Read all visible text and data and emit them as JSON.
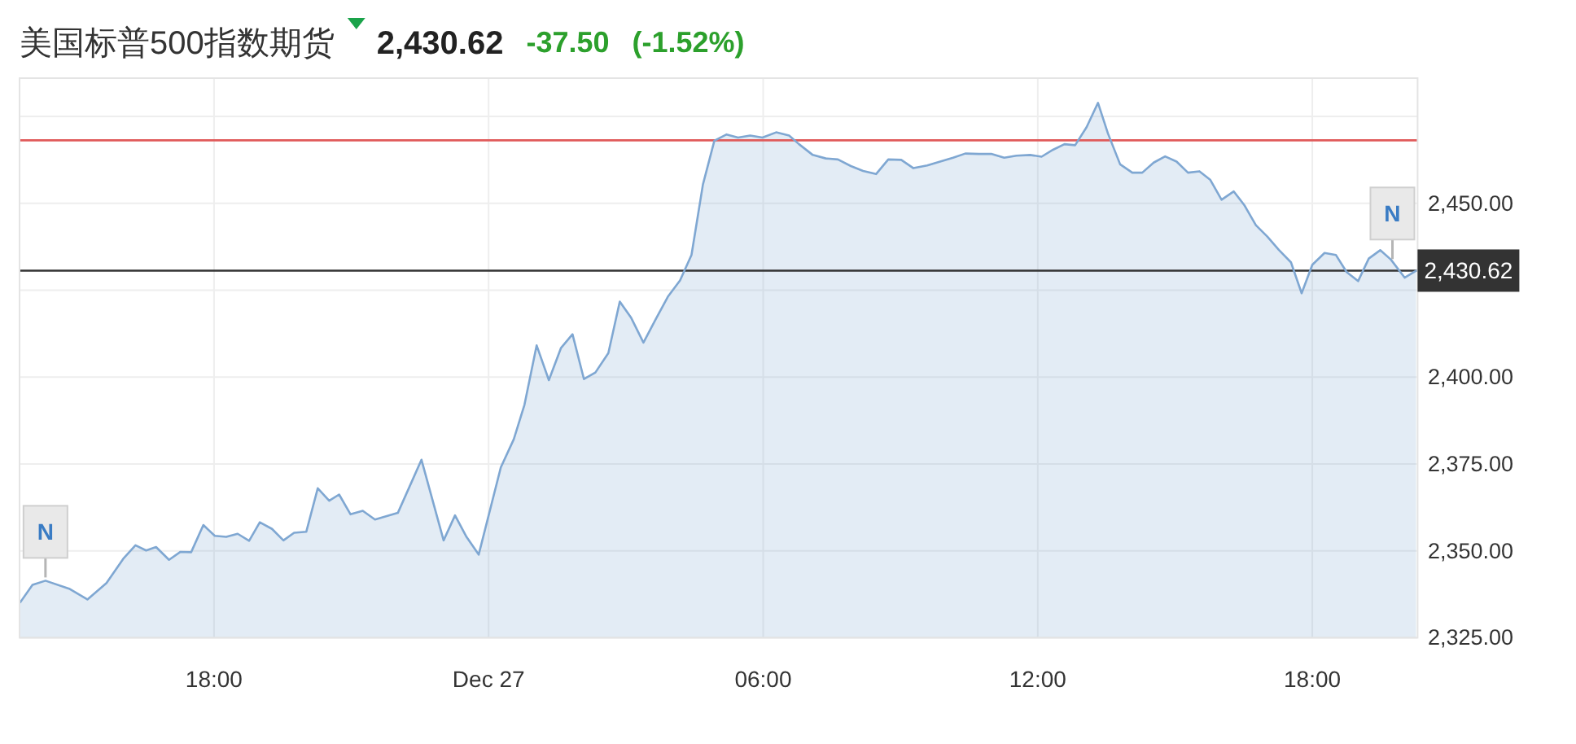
{
  "chart_data": {
    "type": "area",
    "title": "美国标普500指数期货",
    "subtitle": "2,430.62",
    "annotations": [
      "-37.50",
      "(-1.52%)",
      {
        "text": "N",
        "x": "--12-26T14:19",
        "y": 2341.4
      },
      {
        "text": "N",
        "x": "--12-27T19:45",
        "y": 2433
      }
    ],
    "x": [
      "--12-26T13:46",
      "--12-26T14:02",
      "--12-26T14:19",
      "--12-26T14:50",
      "--12-26T15:14",
      "--12-26T15:39",
      "--12-26T16:01",
      "--12-26T16:17",
      "--12-26T16:31",
      "--12-26T16:44",
      "--12-26T17:01",
      "--12-26T17:16",
      "--12-26T17:30",
      "--12-26T17:46",
      "--12-26T18:01",
      "--12-26T18:16",
      "--12-26T18:31",
      "--12-26T18:46",
      "--12-26T19:00",
      "--12-26T19:16",
      "--12-26T19:31",
      "--12-26T19:45",
      "--12-26T20:01",
      "--12-26T20:16",
      "--12-26T20:31",
      "--12-26T20:44",
      "--12-26T20:59",
      "--12-26T21:15",
      "--12-26T21:31",
      "--12-26T22:01",
      "--12-26T22:32",
      "--12-26T23:01",
      "--12-26T23:16",
      "--12-26T23:31",
      "--12-26T23:47",
      "--12-27T00:16",
      "--12-27T00:33",
      "--12-27T00:47",
      "--12-27T01:03",
      "--12-27T01:19",
      "--12-27T01:35",
      "--12-27T01:50",
      "--12-27T02:05",
      "--12-27T02:20",
      "--12-27T02:37",
      "--12-27T02:52",
      "--12-27T03:07",
      "--12-27T03:23",
      "--12-27T03:39",
      "--12-27T03:55",
      "--12-27T04:11",
      "--12-27T04:26",
      "--12-27T04:41",
      "--12-27T04:56",
      "--12-27T05:12",
      "--12-27T05:27",
      "--12-27T05:43",
      "--12-27T05:59",
      "--12-27T06:17",
      "--12-27T06:34",
      "--12-27T06:47",
      "--12-27T07:05",
      "--12-27T07:22",
      "--12-27T07:38",
      "--12-27T07:55",
      "--12-27T08:11",
      "--12-27T08:28",
      "--12-27T08:44",
      "--12-27T09:01",
      "--12-27T09:17",
      "--12-27T09:35",
      "--12-27T09:52",
      "--12-27T10:09",
      "--12-27T10:25",
      "--12-27T10:43",
      "--12-27T10:59",
      "--12-27T11:16",
      "--12-27T11:32",
      "--12-27T11:50",
      "--12-27T12:05",
      "--12-27T12:20",
      "--12-27T12:35",
      "--12-27T12:49",
      "--12-27T13:04",
      "--12-27T13:19",
      "--12-27T13:32",
      "--12-27T13:48",
      "--12-27T14:04",
      "--12-27T14:17",
      "--12-27T14:32",
      "--12-27T14:47",
      "--12-27T15:02",
      "--12-27T15:17",
      "--12-27T15:32",
      "--12-27T15:46",
      "--12-27T16:01",
      "--12-27T16:17",
      "--12-27T16:31",
      "--12-27T16:46",
      "--12-27T17:01",
      "--12-27T17:16",
      "--12-27T17:32",
      "--12-27T17:46",
      "--12-27T18:00",
      "--12-27T18:16",
      "--12-27T18:31",
      "--12-27T18:45",
      "--12-27T19:00",
      "--12-27T19:14",
      "--12-27T19:29",
      "--12-27T19:43",
      "--12-27T20:01",
      "--12-27T20:16"
    ],
    "values": [
      2335.2,
      2340.2,
      2341.4,
      2339.1,
      2336.0,
      2340.7,
      2347.7,
      2351.6,
      2350.1,
      2351.1,
      2347.4,
      2349.7,
      2349.6,
      2357.4,
      2354.3,
      2354.0,
      2354.9,
      2352.9,
      2358.2,
      2356.3,
      2353.0,
      2355.2,
      2355.5,
      2368.0,
      2364.4,
      2366.2,
      2360.5,
      2361.5,
      2359.0,
      2360.9,
      2376.2,
      2353.0,
      2360.2,
      2354.0,
      2348.9,
      2374.0,
      2382.1,
      2392.0,
      2409.1,
      2399.1,
      2408.4,
      2412.3,
      2399.4,
      2401.3,
      2406.9,
      2421.7,
      2417.0,
      2409.9,
      2416.6,
      2423.1,
      2427.8,
      2435.1,
      2455.4,
      2468.0,
      2469.8,
      2468.9,
      2469.5,
      2468.9,
      2470.4,
      2469.5,
      2467.0,
      2463.9,
      2462.9,
      2462.6,
      2460.7,
      2459.3,
      2458.4,
      2462.6,
      2462.5,
      2460.1,
      2460.9,
      2462.0,
      2463.1,
      2464.3,
      2464.2,
      2464.2,
      2463.1,
      2463.7,
      2463.9,
      2463.4,
      2465.4,
      2467.0,
      2466.7,
      2471.9,
      2478.9,
      2470.1,
      2461.2,
      2458.8,
      2458.8,
      2461.7,
      2463.5,
      2462.0,
      2458.8,
      2459.2,
      2456.8,
      2451.0,
      2453.4,
      2449.4,
      2443.7,
      2440.4,
      2436.6,
      2433.0,
      2424.1,
      2432.3,
      2435.7,
      2435.1,
      2430.2,
      2427.6,
      2434.1,
      2436.5,
      2433.8,
      2428.6,
      2430.6
    ],
    "color": "#7fa7d2",
    "xlim": [
      "--12-26T13:45",
      "--12-27T20:18"
    ],
    "xticks": [
      {
        "value": "--12-26T18:00",
        "label": "18:00"
      },
      {
        "value": "--12-27T00:00",
        "label": "Dec 27"
      },
      {
        "value": "--12-27T06:00",
        "label": "06:00"
      },
      {
        "value": "--12-27T12:00",
        "label": "12:00"
      },
      {
        "value": "--12-27T18:00",
        "label": "18:00"
      }
    ],
    "ylim": [
      2325,
      2486
    ],
    "yticks": [
      {
        "value": 2325,
        "label": "2,325.00"
      },
      {
        "value": 2350,
        "label": "2,350.00"
      },
      {
        "value": 2375,
        "label": "2,375.00"
      },
      {
        "value": 2400,
        "label": "2,400.00"
      },
      {
        "value": 2425,
        "label": null
      },
      {
        "value": 2450,
        "label": "2,450.00"
      },
      {
        "value": 2475,
        "label": null
      }
    ],
    "ref_lines": [
      {
        "axis": "y",
        "value": 2468.12,
        "color": "#e05a5a"
      },
      {
        "axis": "y",
        "value": 2430.62,
        "label": "2,430.62",
        "color": "#333333"
      }
    ],
    "grid": true
  }
}
